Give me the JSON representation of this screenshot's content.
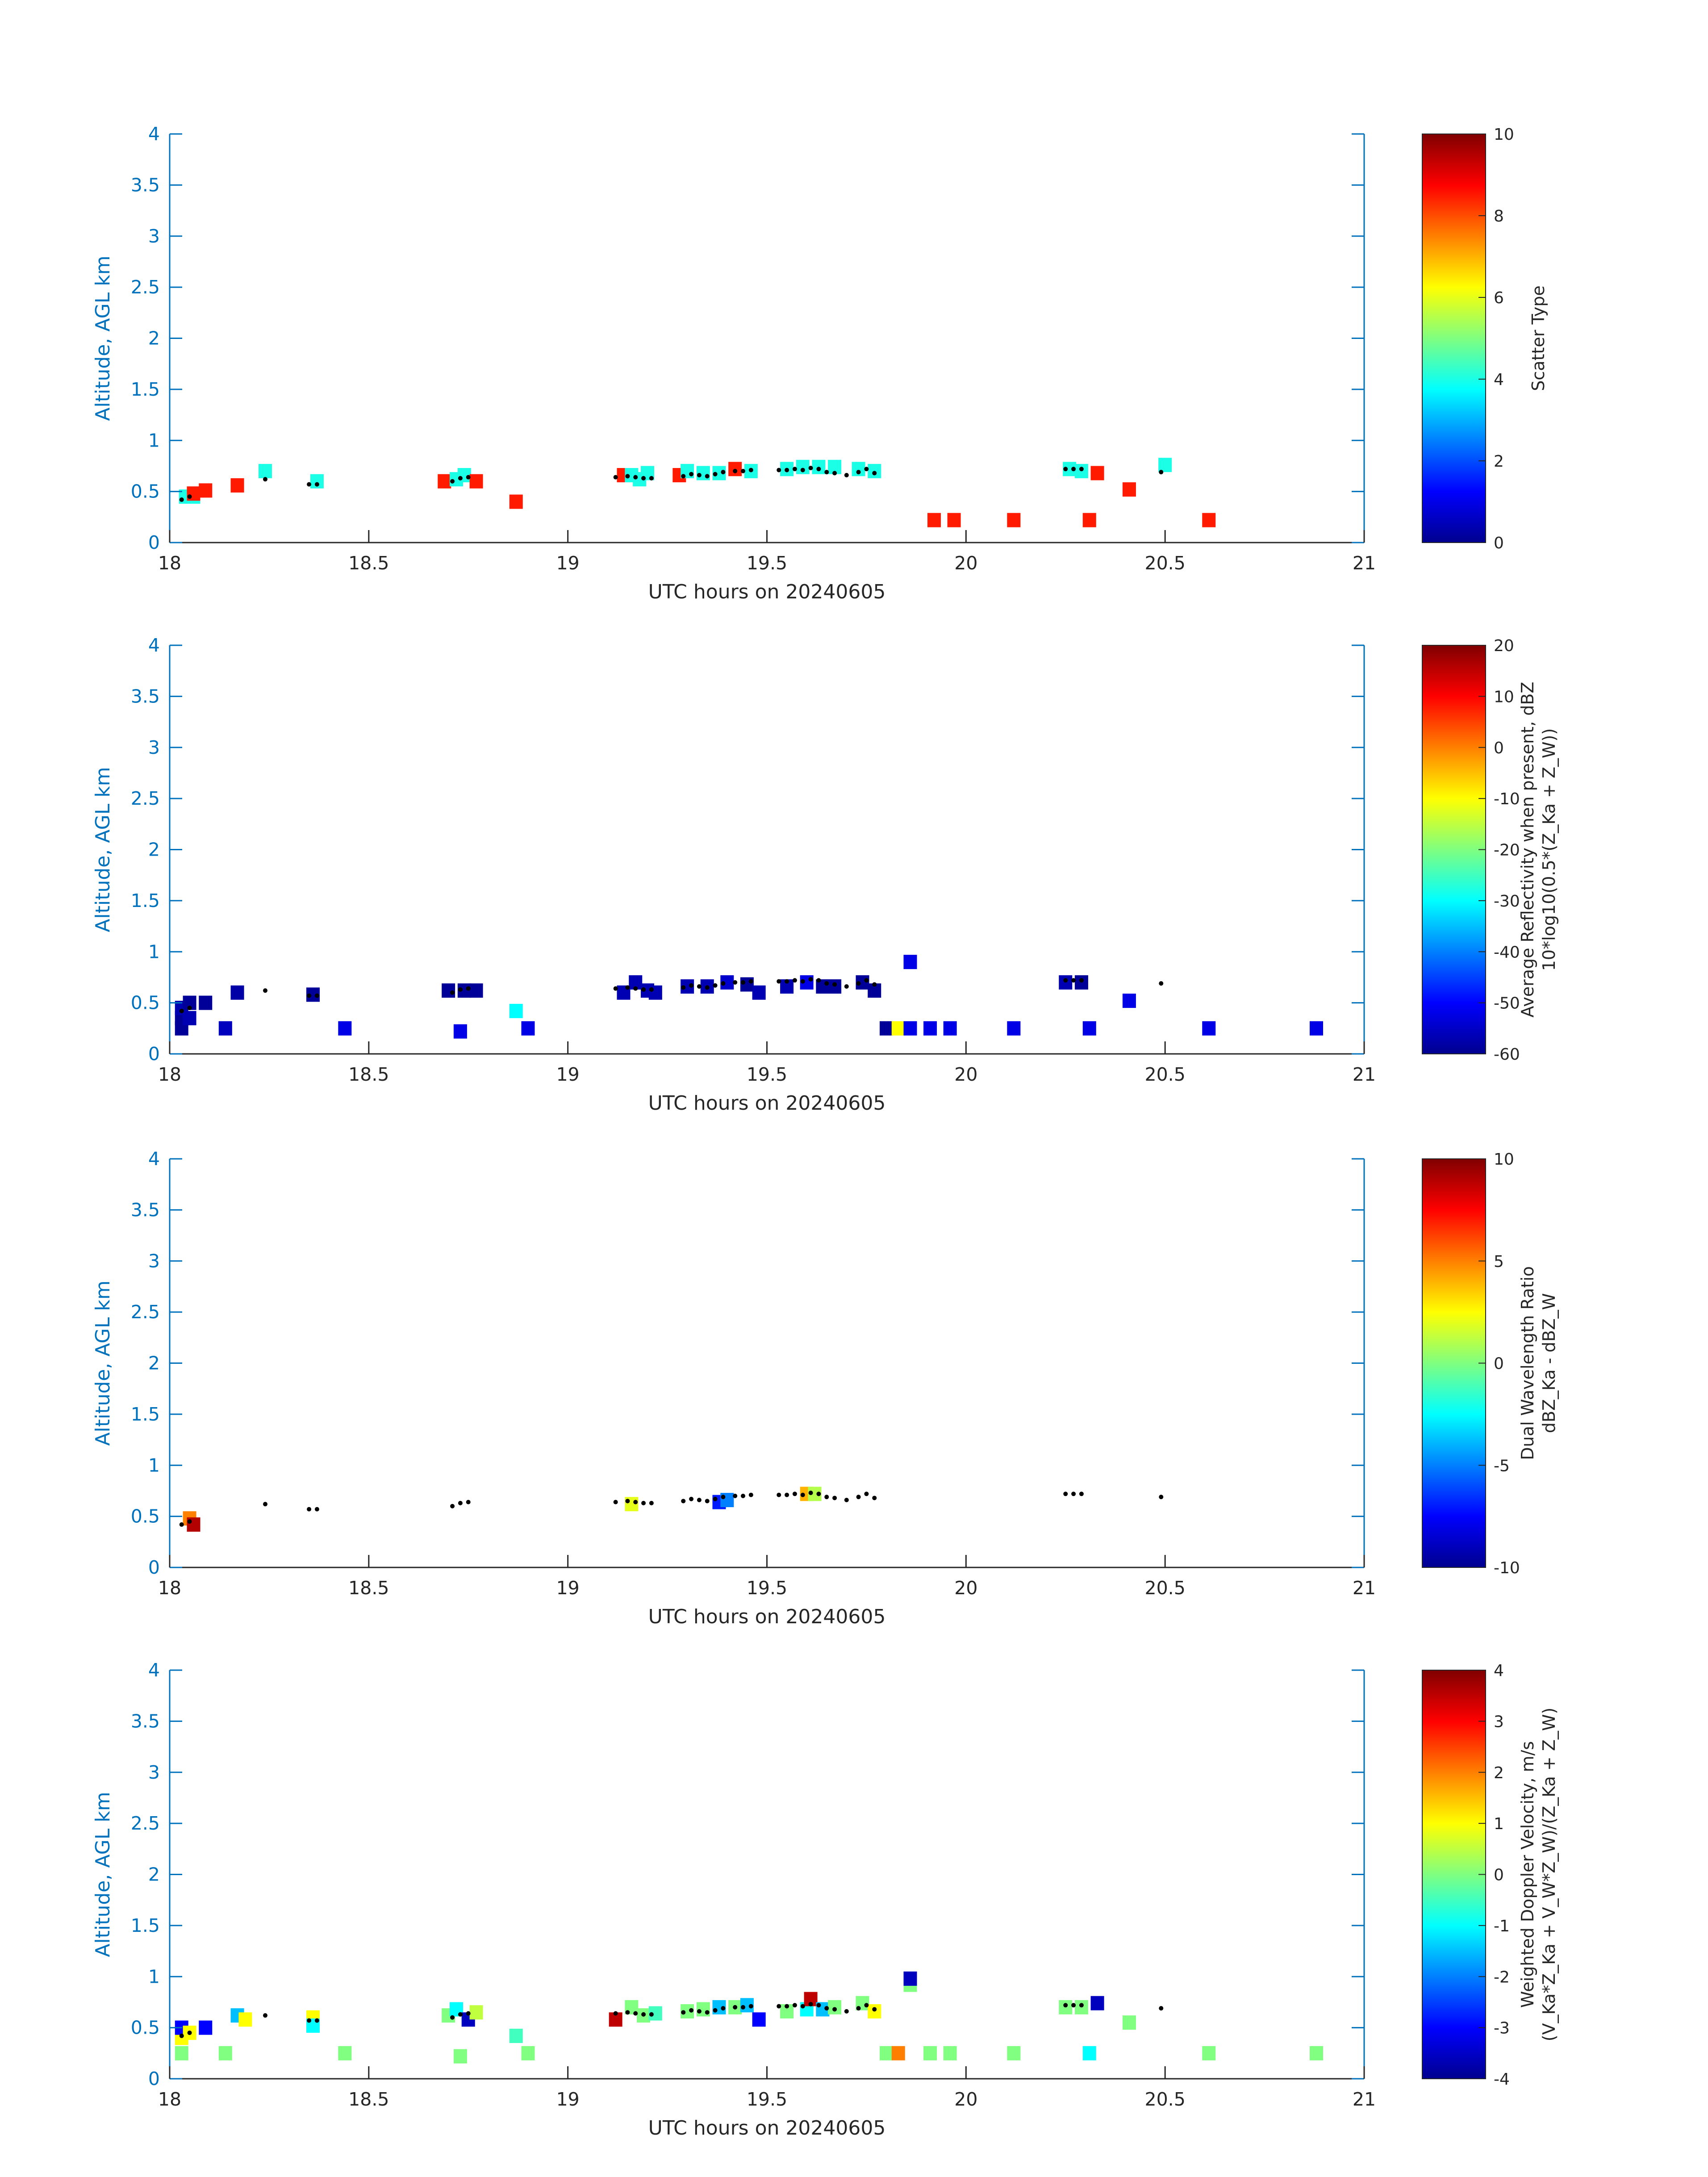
{
  "chart_data": [
    {
      "type": "heatmap",
      "xlabel": "UTC hours on 20240605",
      "ylabel": "Altitude, AGL km",
      "xlim": [
        18,
        21
      ],
      "ylim": [
        0,
        4
      ],
      "xticks": [
        "18",
        "18.5",
        "19",
        "19.5",
        "20",
        "20.5",
        "21"
      ],
      "yticks": [
        "0",
        "0.5",
        "1",
        "1.5",
        "2",
        "2.5",
        "3",
        "3.5",
        "4"
      ],
      "colorbar": {
        "label_lines": [
          "Scatter Type"
        ],
        "clim": [
          0,
          10
        ],
        "ticks": [
          "0",
          "2",
          "4",
          "6",
          "8",
          "10"
        ],
        "colormap": "jet"
      },
      "cells": [
        [
          18.04,
          0.45,
          4
        ],
        [
          18.06,
          0.45,
          4
        ],
        [
          18.06,
          0.48,
          8.5
        ],
        [
          18.09,
          0.51,
          8.5
        ],
        [
          18.17,
          0.56,
          8.5
        ],
        [
          18.24,
          0.7,
          4
        ],
        [
          18.37,
          0.6,
          4
        ],
        [
          18.69,
          0.6,
          8.5
        ],
        [
          18.72,
          0.62,
          4
        ],
        [
          18.74,
          0.66,
          4
        ],
        [
          18.77,
          0.6,
          8.5
        ],
        [
          18.87,
          0.4,
          8.5
        ],
        [
          19.14,
          0.66,
          8.5
        ],
        [
          19.16,
          0.66,
          4
        ],
        [
          19.18,
          0.62,
          4
        ],
        [
          19.2,
          0.68,
          4
        ],
        [
          19.28,
          0.66,
          8.5
        ],
        [
          19.3,
          0.7,
          4
        ],
        [
          19.34,
          0.68,
          4
        ],
        [
          19.38,
          0.68,
          4
        ],
        [
          19.42,
          0.72,
          8.5
        ],
        [
          19.46,
          0.7,
          4
        ],
        [
          19.55,
          0.72,
          4
        ],
        [
          19.59,
          0.74,
          4
        ],
        [
          19.63,
          0.74,
          4
        ],
        [
          19.67,
          0.74,
          4
        ],
        [
          19.73,
          0.72,
          4
        ],
        [
          19.77,
          0.7,
          4
        ],
        [
          19.92,
          0.22,
          8.5
        ],
        [
          19.97,
          0.22,
          8.5
        ],
        [
          20.12,
          0.22,
          8.5
        ],
        [
          20.26,
          0.72,
          4
        ],
        [
          20.29,
          0.7,
          4
        ],
        [
          20.31,
          0.22,
          8.5
        ],
        [
          20.33,
          0.68,
          8.5
        ],
        [
          20.41,
          0.52,
          8.5
        ],
        [
          20.5,
          0.76,
          4
        ],
        [
          20.61,
          0.22,
          8.5
        ]
      ]
    },
    {
      "type": "heatmap",
      "xlabel": "UTC hours on 20240605",
      "ylabel": "Altitude, AGL km",
      "xlim": [
        18,
        21
      ],
      "ylim": [
        0,
        4
      ],
      "xticks": [
        "18",
        "18.5",
        "19",
        "19.5",
        "20",
        "20.5",
        "21"
      ],
      "yticks": [
        "0",
        "0.5",
        "1",
        "1.5",
        "2",
        "2.5",
        "3",
        "3.5",
        "4"
      ],
      "colorbar": {
        "label_lines": [
          "Average Reflectivity when present, dBZ",
          "10*log10(0.5*(Z_Ka + Z_W))"
        ],
        "clim": [
          -60,
          20
        ],
        "ticks": [
          "-60",
          "-50",
          "-40",
          "-30",
          "-20",
          "-10",
          "0",
          "10",
          "20"
        ],
        "colormap": "jet"
      },
      "cells": [
        [
          18.03,
          0.25,
          -58
        ],
        [
          18.03,
          0.35,
          -58
        ],
        [
          18.03,
          0.45,
          -56
        ],
        [
          18.05,
          0.5,
          -58
        ],
        [
          18.05,
          0.35,
          -56
        ],
        [
          18.09,
          0.5,
          -58
        ],
        [
          18.14,
          0.25,
          -55
        ],
        [
          18.17,
          0.6,
          -57
        ],
        [
          18.36,
          0.58,
          -58
        ],
        [
          18.44,
          0.25,
          -52
        ],
        [
          18.7,
          0.62,
          -58
        ],
        [
          18.74,
          0.62,
          -58
        ],
        [
          18.77,
          0.62,
          -58
        ],
        [
          18.73,
          0.22,
          -52
        ],
        [
          18.87,
          0.42,
          -30
        ],
        [
          18.9,
          0.25,
          -52
        ],
        [
          19.14,
          0.6,
          -56
        ],
        [
          19.17,
          0.7,
          -56
        ],
        [
          19.2,
          0.62,
          -56
        ],
        [
          19.22,
          0.6,
          -56
        ],
        [
          19.3,
          0.66,
          -56
        ],
        [
          19.35,
          0.66,
          -56
        ],
        [
          19.4,
          0.7,
          -54
        ],
        [
          19.45,
          0.68,
          -58
        ],
        [
          19.48,
          0.6,
          -56
        ],
        [
          19.55,
          0.66,
          -56
        ],
        [
          19.6,
          0.7,
          -52
        ],
        [
          19.64,
          0.66,
          -58
        ],
        [
          19.67,
          0.66,
          -58
        ],
        [
          19.74,
          0.7,
          -58
        ],
        [
          19.77,
          0.62,
          -58
        ],
        [
          19.8,
          0.25,
          -58
        ],
        [
          19.83,
          0.25,
          -10
        ],
        [
          19.86,
          0.9,
          -52
        ],
        [
          19.86,
          0.25,
          -52
        ],
        [
          19.91,
          0.25,
          -52
        ],
        [
          19.96,
          0.25,
          -52
        ],
        [
          20.12,
          0.25,
          -52
        ],
        [
          20.25,
          0.7,
          -56
        ],
        [
          20.29,
          0.7,
          -58
        ],
        [
          20.31,
          0.25,
          -52
        ],
        [
          20.41,
          0.52,
          -52
        ],
        [
          20.61,
          0.25,
          -52
        ],
        [
          20.88,
          0.25,
          -52
        ]
      ]
    },
    {
      "type": "heatmap",
      "xlabel": "UTC hours on 20240605",
      "ylabel": "Altitude, AGL km",
      "xlim": [
        18,
        21
      ],
      "ylim": [
        0,
        4
      ],
      "xticks": [
        "18",
        "18.5",
        "19",
        "19.5",
        "20",
        "20.5",
        "21"
      ],
      "yticks": [
        "0",
        "0.5",
        "1",
        "1.5",
        "2",
        "2.5",
        "3",
        "3.5",
        "4"
      ],
      "colorbar": {
        "label_lines": [
          "Dual Wavelength Ratio",
          "dBZ_Ka - dBZ_W"
        ],
        "clim": [
          -10,
          10
        ],
        "ticks": [
          "-10",
          "-5",
          "0",
          "5",
          "10"
        ],
        "colormap": "jet"
      },
      "cells": [
        [
          18.05,
          0.48,
          5
        ],
        [
          18.06,
          0.42,
          9
        ],
        [
          19.16,
          0.62,
          2
        ],
        [
          19.38,
          0.64,
          -7
        ],
        [
          19.4,
          0.66,
          -5
        ],
        [
          19.6,
          0.72,
          4
        ],
        [
          19.62,
          0.72,
          1
        ]
      ]
    },
    {
      "type": "heatmap",
      "xlabel": "UTC hours on 20240605",
      "ylabel": "Altitude, AGL km",
      "xlim": [
        18,
        21
      ],
      "ylim": [
        0,
        4
      ],
      "xticks": [
        "18",
        "18.5",
        "19",
        "19.5",
        "20",
        "20.5",
        "21"
      ],
      "yticks": [
        "0",
        "0.5",
        "1",
        "1.5",
        "2",
        "2.5",
        "3",
        "3.5",
        "4"
      ],
      "colorbar": {
        "label_lines": [
          "Weighted Doppler Velocity, m/s",
          "(V_Ka*Z_Ka + V_W*Z_W)/(Z_Ka + Z_W)"
        ],
        "clim": [
          -4,
          4
        ],
        "ticks": [
          "-4",
          "-3",
          "-2",
          "-1",
          "0",
          "1",
          "2",
          "3",
          "4"
        ],
        "colormap": "jet"
      },
      "cells": [
        [
          18.03,
          0.25,
          0
        ],
        [
          18.03,
          0.4,
          1
        ],
        [
          18.03,
          0.5,
          -3
        ],
        [
          18.05,
          0.45,
          1
        ],
        [
          18.09,
          0.5,
          -3
        ],
        [
          18.14,
          0.25,
          0
        ],
        [
          18.17,
          0.62,
          -1.5
        ],
        [
          18.19,
          0.58,
          1
        ],
        [
          18.36,
          0.6,
          1
        ],
        [
          18.36,
          0.52,
          -1
        ],
        [
          18.44,
          0.25,
          0
        ],
        [
          18.7,
          0.62,
          0
        ],
        [
          18.72,
          0.68,
          -1
        ],
        [
          18.75,
          0.58,
          -3.5
        ],
        [
          18.77,
          0.65,
          0.5
        ],
        [
          18.73,
          0.22,
          0
        ],
        [
          18.87,
          0.42,
          -0.5
        ],
        [
          18.9,
          0.25,
          0
        ],
        [
          19.12,
          0.58,
          3.5
        ],
        [
          19.16,
          0.7,
          0
        ],
        [
          19.19,
          0.62,
          0
        ],
        [
          19.22,
          0.64,
          -0.5
        ],
        [
          19.3,
          0.66,
          0
        ],
        [
          19.34,
          0.68,
          0
        ],
        [
          19.38,
          0.7,
          -1.5
        ],
        [
          19.42,
          0.7,
          0
        ],
        [
          19.45,
          0.72,
          -1.5
        ],
        [
          19.48,
          0.58,
          -3
        ],
        [
          19.55,
          0.66,
          0
        ],
        [
          19.6,
          0.68,
          -1
        ],
        [
          19.61,
          0.78,
          3.5
        ],
        [
          19.64,
          0.68,
          -1.5
        ],
        [
          19.67,
          0.7,
          0
        ],
        [
          19.74,
          0.74,
          0
        ],
        [
          19.77,
          0.66,
          1
        ],
        [
          19.8,
          0.25,
          0
        ],
        [
          19.83,
          0.25,
          2
        ],
        [
          19.86,
          0.92,
          0
        ],
        [
          19.86,
          0.98,
          -3.5
        ],
        [
          19.91,
          0.25,
          0
        ],
        [
          19.96,
          0.25,
          0
        ],
        [
          20.12,
          0.25,
          0
        ],
        [
          20.25,
          0.7,
          0
        ],
        [
          20.29,
          0.7,
          0
        ],
        [
          20.33,
          0.74,
          -3.5
        ],
        [
          20.31,
          0.25,
          -1
        ],
        [
          20.41,
          0.55,
          0
        ],
        [
          20.61,
          0.25,
          0
        ],
        [
          20.88,
          0.25,
          0
        ]
      ]
    }
  ],
  "black_dot_series": [
    [
      18.03,
      0.42
    ],
    [
      18.05,
      0.45
    ],
    [
      18.24,
      0.62
    ],
    [
      18.35,
      0.57
    ],
    [
      18.37,
      0.57
    ],
    [
      18.71,
      0.6
    ],
    [
      18.73,
      0.63
    ],
    [
      18.75,
      0.64
    ],
    [
      19.12,
      0.64
    ],
    [
      19.15,
      0.65
    ],
    [
      19.17,
      0.64
    ],
    [
      19.19,
      0.63
    ],
    [
      19.21,
      0.63
    ],
    [
      19.29,
      0.65
    ],
    [
      19.31,
      0.67
    ],
    [
      19.33,
      0.66
    ],
    [
      19.35,
      0.65
    ],
    [
      19.37,
      0.67
    ],
    [
      19.39,
      0.69
    ],
    [
      19.42,
      0.7
    ],
    [
      19.44,
      0.7
    ],
    [
      19.46,
      0.71
    ],
    [
      19.53,
      0.71
    ],
    [
      19.55,
      0.71
    ],
    [
      19.57,
      0.72
    ],
    [
      19.59,
      0.71
    ],
    [
      19.61,
      0.73
    ],
    [
      19.63,
      0.72
    ],
    [
      19.65,
      0.69
    ],
    [
      19.67,
      0.68
    ],
    [
      19.7,
      0.66
    ],
    [
      19.73,
      0.69
    ],
    [
      19.75,
      0.72
    ],
    [
      19.77,
      0.68
    ],
    [
      20.25,
      0.72
    ],
    [
      20.27,
      0.72
    ],
    [
      20.29,
      0.72
    ],
    [
      20.49,
      0.69
    ]
  ]
}
